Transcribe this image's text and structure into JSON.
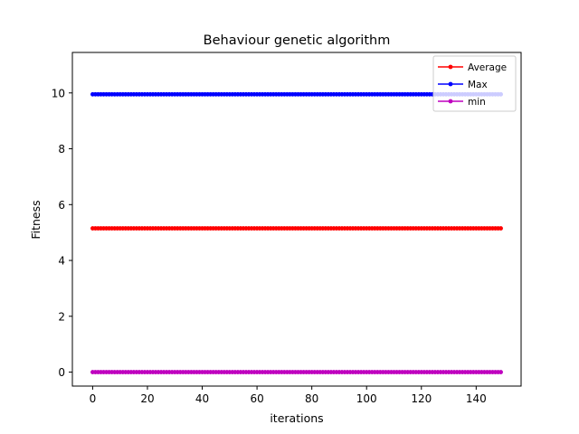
{
  "chart_data": {
    "type": "line",
    "title": "Behaviour genetic algorithm",
    "xlabel": "iterations",
    "ylabel": "Fitness",
    "xlim": [
      -7.4,
      156.4
    ],
    "ylim": [
      -0.5,
      11.45
    ],
    "xticks": [
      0,
      20,
      40,
      60,
      80,
      100,
      120,
      140
    ],
    "yticks": [
      0,
      2,
      4,
      6,
      8,
      10
    ],
    "x_start": 0,
    "x_end": 149,
    "x_step": 1,
    "grid": false,
    "legend_position": "top-right",
    "series": [
      {
        "name": "Average",
        "color": "#ff0000",
        "constant_value": 5.15
      },
      {
        "name": "Max",
        "color": "#0000ff",
        "constant_value": 9.95
      },
      {
        "name": "min",
        "color": "#bf00bf",
        "constant_value": 0.0
      }
    ]
  }
}
